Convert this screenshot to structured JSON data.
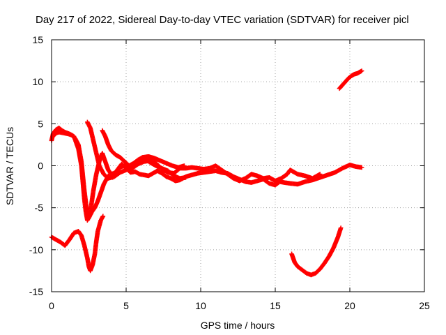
{
  "chart_data": {
    "type": "scatter",
    "title": "Day 217 of 2022, Sidereal Day-to-day VTEC variation (SDTVAR) for receiver picl",
    "xlabel": "GPS time / hours",
    "ylabel": "SDTVAR / TECUs",
    "xlim": [
      0,
      25
    ],
    "ylim": [
      -15,
      15
    ],
    "xticks": [
      0,
      5,
      10,
      15,
      20,
      25
    ],
    "yticks": [
      -15,
      -10,
      -5,
      0,
      5,
      10,
      15
    ],
    "xtick_labels": [
      "0",
      "5",
      "10",
      "15",
      "20",
      "25"
    ],
    "ytick_labels": [
      "-15",
      "-10",
      "-5",
      "0",
      "5",
      "10",
      "15"
    ],
    "grid": true,
    "grid_style": "dotted",
    "marker": "+",
    "color": "#ff0000",
    "series": [
      {
        "points": [
          [
            0.0,
            -8.5
          ],
          [
            0.3,
            -8.8
          ],
          [
            0.6,
            -9.1
          ],
          [
            0.9,
            -9.5
          ],
          [
            1.2,
            -8.8
          ],
          [
            1.5,
            -8.0
          ],
          [
            1.8,
            -7.8
          ],
          [
            2.0,
            -8.3
          ],
          [
            2.2,
            -9.5
          ],
          [
            2.4,
            -11.0
          ],
          [
            2.5,
            -12.0
          ],
          [
            2.6,
            -12.5
          ],
          [
            2.75,
            -11.8
          ],
          [
            2.9,
            -10.5
          ],
          [
            3.0,
            -9.0
          ],
          [
            3.1,
            -7.8
          ],
          [
            3.3,
            -6.5
          ],
          [
            3.45,
            -6.0
          ]
        ]
      },
      {
        "points": [
          [
            0.0,
            3.0
          ],
          [
            0.1,
            3.8
          ],
          [
            0.3,
            4.3
          ],
          [
            0.5,
            4.5
          ],
          [
            0.7,
            4.2
          ],
          [
            0.9,
            4.0
          ],
          [
            1.2,
            3.8
          ],
          [
            1.5,
            3.5
          ],
          [
            1.8,
            2.0
          ],
          [
            2.0,
            0.0
          ],
          [
            2.1,
            -2.0
          ],
          [
            2.2,
            -4.0
          ],
          [
            2.3,
            -5.5
          ],
          [
            2.4,
            -6.5
          ],
          [
            2.5,
            -6.2
          ],
          [
            2.7,
            -5.5
          ],
          [
            2.9,
            -5.0
          ],
          [
            3.1,
            -4.2
          ],
          [
            3.3,
            -3.2
          ],
          [
            3.5,
            -2.2
          ],
          [
            3.8,
            -1.2
          ],
          [
            4.1,
            -1.4
          ],
          [
            4.4,
            -0.5
          ],
          [
            4.7,
            0.2
          ],
          [
            5.0,
            -0.3
          ],
          [
            5.3,
            -0.8
          ],
          [
            5.6,
            -0.7
          ],
          [
            5.9,
            -1.0
          ],
          [
            6.2,
            -1.1
          ],
          [
            6.5,
            -1.2
          ],
          [
            6.8,
            -0.9
          ],
          [
            7.1,
            -0.6
          ],
          [
            7.4,
            -0.9
          ],
          [
            7.7,
            -1.3
          ],
          [
            8.0,
            -1.5
          ],
          [
            8.3,
            -1.8
          ],
          [
            8.6,
            -1.7
          ],
          [
            9.0,
            -1.3
          ],
          [
            9.4,
            -1.1
          ],
          [
            9.8,
            -0.9
          ],
          [
            10.2,
            -0.8
          ],
          [
            10.6,
            -0.7
          ],
          [
            11.0,
            -0.6
          ],
          [
            11.4,
            -0.8
          ],
          [
            11.8,
            -0.9
          ],
          [
            12.2,
            -1.3
          ],
          [
            12.6,
            -1.6
          ],
          [
            13.0,
            -1.9
          ],
          [
            13.4,
            -2.0
          ],
          [
            13.8,
            -1.8
          ],
          [
            14.2,
            -1.6
          ],
          [
            14.6,
            -2.1
          ],
          [
            15.0,
            -2.3
          ],
          [
            15.3,
            -1.9
          ],
          [
            15.6,
            -2.0
          ],
          [
            16.0,
            -2.1
          ],
          [
            16.5,
            -2.2
          ],
          [
            17.0,
            -1.9
          ],
          [
            17.5,
            -1.7
          ],
          [
            18.0,
            -1.4
          ],
          [
            18.5,
            -1.1
          ],
          [
            19.0,
            -0.8
          ],
          [
            19.5,
            -0.3
          ],
          [
            20.0,
            0.1
          ],
          [
            20.4,
            -0.1
          ],
          [
            20.8,
            -0.2
          ]
        ]
      },
      {
        "points": [
          [
            0.1,
            3.5
          ],
          [
            0.3,
            3.9
          ],
          [
            0.5,
            4.0
          ],
          [
            0.8,
            3.9
          ],
          [
            1.1,
            3.8
          ],
          [
            1.4,
            3.6
          ],
          [
            1.6,
            3.2
          ],
          [
            1.8,
            2.5
          ],
          [
            2.0,
            0.5
          ],
          [
            2.2,
            -3.0
          ],
          [
            2.4,
            -5.8
          ],
          [
            2.6,
            -5.5
          ],
          [
            2.8,
            -3.0
          ],
          [
            3.0,
            -1.0
          ],
          [
            3.2,
            0.5
          ],
          [
            3.4,
            1.5
          ],
          [
            3.6,
            0.5
          ],
          [
            3.8,
            -0.5
          ],
          [
            4.0,
            -1.0
          ],
          [
            4.3,
            -0.8
          ],
          [
            4.6,
            -0.2
          ],
          [
            5.0,
            0.1
          ],
          [
            5.4,
            -0.3
          ],
          [
            5.8,
            0.2
          ],
          [
            6.2,
            0.5
          ],
          [
            6.6,
            0.6
          ],
          [
            7.0,
            0.3
          ],
          [
            7.4,
            -0.4
          ],
          [
            7.8,
            -0.8
          ],
          [
            8.2,
            -0.9
          ],
          [
            8.6,
            -0.3
          ],
          [
            9.0,
            -0.3
          ],
          [
            9.4,
            -0.2
          ],
          [
            9.8,
            -0.3
          ],
          [
            10.2,
            -0.4
          ],
          [
            10.6,
            -0.3
          ],
          [
            11.0,
            0.0
          ],
          [
            11.4,
            -0.5
          ],
          [
            11.8,
            -1.0
          ],
          [
            12.2,
            -1.5
          ],
          [
            12.6,
            -1.8
          ],
          [
            13.0,
            -1.5
          ],
          [
            13.4,
            -1.0
          ],
          [
            13.8,
            -1.2
          ],
          [
            14.2,
            -1.5
          ],
          [
            14.6,
            -1.4
          ],
          [
            15.0,
            -1.8
          ],
          [
            15.4,
            -1.5
          ],
          [
            15.8,
            -1.0
          ],
          [
            16.0,
            -0.5
          ],
          [
            16.5,
            -1.0
          ],
          [
            17.0,
            -1.2
          ],
          [
            17.5,
            -1.5
          ],
          [
            18.0,
            -1.0
          ]
        ]
      },
      {
        "points": [
          [
            2.4,
            5.2
          ],
          [
            2.6,
            4.5
          ],
          [
            2.8,
            3.0
          ],
          [
            3.0,
            1.5
          ],
          [
            3.2,
            0.0
          ],
          [
            3.5,
            -1.0
          ],
          [
            3.8,
            -1.5
          ],
          [
            4.2,
            -1.3
          ],
          [
            4.6,
            -0.8
          ],
          [
            5.0,
            -0.5
          ],
          [
            5.4,
            -0.2
          ],
          [
            5.8,
            0.3
          ],
          [
            6.2,
            0.9
          ],
          [
            6.6,
            0.4
          ],
          [
            7.0,
            0.0
          ],
          [
            7.4,
            -0.3
          ],
          [
            7.8,
            -0.6
          ],
          [
            8.2,
            -1.2
          ],
          [
            8.6,
            -1.5
          ],
          [
            9.0,
            -1.4
          ]
        ]
      },
      {
        "points": [
          [
            3.4,
            4.2
          ],
          [
            3.6,
            3.5
          ],
          [
            3.8,
            2.5
          ],
          [
            4.0,
            1.8
          ],
          [
            4.3,
            1.3
          ],
          [
            4.6,
            1.0
          ],
          [
            4.9,
            0.5
          ],
          [
            5.2,
            0.0
          ],
          [
            5.5,
            0.3
          ],
          [
            5.8,
            0.7
          ],
          [
            6.1,
            1.0
          ],
          [
            6.5,
            1.1
          ],
          [
            6.9,
            0.9
          ],
          [
            7.3,
            0.6
          ],
          [
            7.7,
            0.3
          ],
          [
            8.1,
            0.0
          ],
          [
            8.5,
            -0.2
          ],
          [
            8.9,
            0.0
          ]
        ]
      },
      {
        "points": [
          [
            16.1,
            -10.5
          ],
          [
            16.3,
            -11.5
          ],
          [
            16.5,
            -12.0
          ],
          [
            16.8,
            -12.4
          ],
          [
            17.1,
            -12.8
          ],
          [
            17.4,
            -13.0
          ],
          [
            17.7,
            -12.8
          ],
          [
            18.0,
            -12.3
          ],
          [
            18.3,
            -11.6
          ],
          [
            18.6,
            -10.8
          ],
          [
            18.9,
            -9.8
          ],
          [
            19.2,
            -8.5
          ],
          [
            19.4,
            -7.4
          ]
        ]
      },
      {
        "points": [
          [
            19.3,
            9.2
          ],
          [
            19.5,
            9.6
          ],
          [
            19.7,
            10.0
          ],
          [
            19.9,
            10.4
          ],
          [
            20.1,
            10.7
          ],
          [
            20.3,
            10.9
          ],
          [
            20.5,
            11.0
          ],
          [
            20.7,
            11.2
          ],
          [
            20.8,
            11.3
          ]
        ]
      }
    ]
  }
}
